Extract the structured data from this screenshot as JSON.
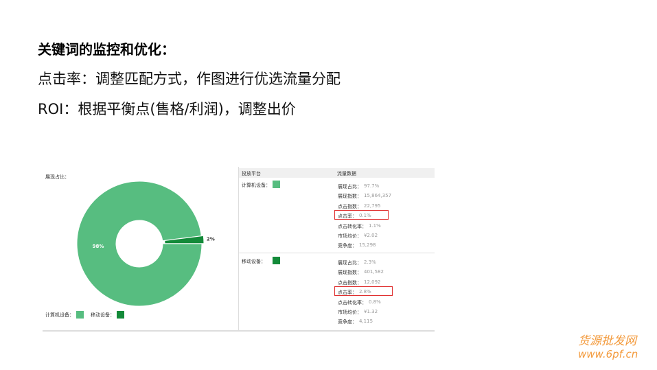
{
  "slide": {
    "heading": "关键词的监控和优化：",
    "lines": [
      "点击率：调整匹配方式，作图进行优选流量分配",
      "ROI：根据平衡点(售格/利润)，调整出价"
    ]
  },
  "chart_data": {
    "type": "donut",
    "title": "展现占比：",
    "categories": [
      "计算机设备：",
      "移动设备："
    ],
    "values": [
      98,
      2
    ],
    "value_labels": [
      "98%",
      "2%"
    ],
    "colors": [
      "#57bd80",
      "#138a39"
    ]
  },
  "table": {
    "header": [
      "投放平台",
      "流量数据"
    ],
    "rows": [
      {
        "platform": "计算机设备：",
        "metrics": [
          [
            "展现占比：",
            "97.7%"
          ],
          [
            "展现指数：",
            "15,864,357"
          ],
          [
            "点击指数：",
            "22,795"
          ],
          [
            "点击率：",
            "0.1%"
          ],
          [
            "点击转化率：",
            "1.1%"
          ],
          [
            "市场均价：",
            "¥2.02"
          ],
          [
            "竞争度：",
            "15,298"
          ]
        ]
      },
      {
        "platform": "移动设备：",
        "metrics": [
          [
            "展现占比：",
            "2.3%"
          ],
          [
            "展现指数：",
            "401,582"
          ],
          [
            "点击指数：",
            "12,092"
          ],
          [
            "点击率：",
            "2.8%"
          ],
          [
            "点击转化率：",
            "0.8%"
          ],
          [
            "市场均价：",
            "¥1.32"
          ],
          [
            "竞争度：",
            "4,115"
          ]
        ]
      }
    ]
  },
  "watermark": {
    "name": "货源批发网",
    "url": "www.6pf.cn"
  }
}
